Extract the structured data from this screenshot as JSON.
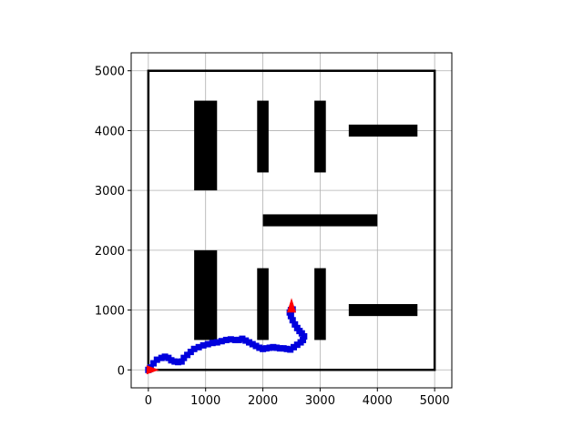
{
  "chart_data": {
    "type": "scatter",
    "title": "",
    "xlabel": "",
    "ylabel": "",
    "xlim": [
      -300,
      5300
    ],
    "ylim": [
      -300,
      5300
    ],
    "xticks": [
      0,
      1000,
      2000,
      3000,
      4000,
      5000
    ],
    "yticks": [
      0,
      1000,
      2000,
      3000,
      4000,
      5000
    ],
    "xtick_labels": [
      "0",
      "1000",
      "2000",
      "3000",
      "4000",
      "5000"
    ],
    "ytick_labels": [
      "0",
      "1000",
      "2000",
      "3000",
      "4000",
      "5000"
    ],
    "grid": true,
    "boundary": [
      [
        0,
        0
      ],
      [
        5000,
        0
      ],
      [
        5000,
        5000
      ],
      [
        0,
        5000
      ]
    ],
    "obstacles": [
      {
        "x0": 800,
        "y0": 3000,
        "x1": 1200,
        "y1": 4500
      },
      {
        "x0": 1900,
        "y0": 3300,
        "x1": 2100,
        "y1": 4500
      },
      {
        "x0": 2900,
        "y0": 3300,
        "x1": 3100,
        "y1": 4500
      },
      {
        "x0": 3500,
        "y0": 3900,
        "x1": 4700,
        "y1": 4100
      },
      {
        "x0": 2000,
        "y0": 2400,
        "x1": 4000,
        "y1": 2600
      },
      {
        "x0": 800,
        "y0": 500,
        "x1": 1200,
        "y1": 2000
      },
      {
        "x0": 1900,
        "y0": 500,
        "x1": 2100,
        "y1": 1700
      },
      {
        "x0": 2900,
        "y0": 500,
        "x1": 3100,
        "y1": 1700
      },
      {
        "x0": 3500,
        "y0": 900,
        "x1": 4700,
        "y1": 1100
      }
    ],
    "path": {
      "color": "#0000dd",
      "points": [
        [
          0,
          0
        ],
        [
          40,
          40
        ],
        [
          90,
          110
        ],
        [
          150,
          170
        ],
        [
          230,
          200
        ],
        [
          290,
          220
        ],
        [
          350,
          200
        ],
        [
          400,
          160
        ],
        [
          460,
          140
        ],
        [
          520,
          130
        ],
        [
          580,
          140
        ],
        [
          620,
          200
        ],
        [
          680,
          250
        ],
        [
          740,
          300
        ],
        [
          800,
          350
        ],
        [
          880,
          380
        ],
        [
          960,
          410
        ],
        [
          1040,
          430
        ],
        [
          1120,
          450
        ],
        [
          1200,
          460
        ],
        [
          1280,
          480
        ],
        [
          1360,
          500
        ],
        [
          1440,
          510
        ],
        [
          1520,
          500
        ],
        [
          1580,
          500
        ],
        [
          1640,
          520
        ],
        [
          1700,
          490
        ],
        [
          1760,
          460
        ],
        [
          1820,
          430
        ],
        [
          1880,
          400
        ],
        [
          1940,
          370
        ],
        [
          2000,
          350
        ],
        [
          2060,
          360
        ],
        [
          2120,
          370
        ],
        [
          2180,
          380
        ],
        [
          2240,
          370
        ],
        [
          2300,
          360
        ],
        [
          2360,
          360
        ],
        [
          2420,
          350
        ],
        [
          2480,
          340
        ],
        [
          2540,
          380
        ],
        [
          2600,
          420
        ],
        [
          2660,
          460
        ],
        [
          2700,
          500
        ],
        [
          2720,
          560
        ],
        [
          2680,
          610
        ],
        [
          2640,
          650
        ],
        [
          2600,
          700
        ],
        [
          2560,
          760
        ],
        [
          2520,
          830
        ],
        [
          2490,
          900
        ],
        [
          2470,
          960
        ],
        [
          2490,
          1000
        ],
        [
          2520,
          1010
        ]
      ]
    },
    "markers": [
      {
        "name": "start",
        "x": 0,
        "y": 0,
        "color": "#ff0000"
      },
      {
        "name": "goal",
        "x": 2500,
        "y": 1050,
        "color": "#ff0000"
      }
    ]
  }
}
